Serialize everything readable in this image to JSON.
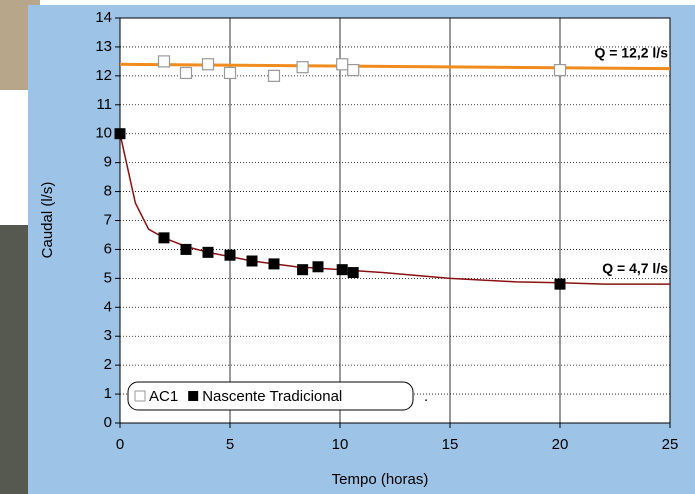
{
  "chart_data": {
    "type": "scatter",
    "x_label": "Tempo (horas)",
    "y_label": "Caudal (l/s)",
    "xlim": [
      0,
      25
    ],
    "ylim": [
      0,
      14
    ],
    "xticks": [
      0,
      5,
      10,
      15,
      20,
      25
    ],
    "yticks": [
      0,
      1,
      2,
      3,
      4,
      5,
      6,
      7,
      8,
      9,
      10,
      11,
      12,
      13,
      14
    ],
    "grid": true,
    "series": [
      {
        "name": "AC1",
        "color": "#999999",
        "marker": "open-square",
        "x": [
          2,
          3,
          4,
          5,
          7,
          8.3,
          10.1,
          10.6,
          20
        ],
        "values": [
          12.5,
          12.1,
          12.4,
          12.1,
          12.0,
          12.3,
          12.4,
          12.2,
          12.2
        ]
      },
      {
        "name": "Nascente Tradicional",
        "color": "#000000",
        "marker": "filled-square",
        "x": [
          0,
          2,
          3,
          4,
          5,
          6,
          7,
          8.3,
          9,
          10.1,
          10.6,
          20
        ],
        "values": [
          10,
          6.4,
          6.0,
          5.9,
          5.8,
          5.6,
          5.5,
          5.3,
          5.4,
          5.3,
          5.2,
          4.8
        ]
      }
    ],
    "trend_lines": [
      {
        "color": "#f08c1e",
        "x": [
          0,
          25
        ],
        "values": [
          12.4,
          12.25
        ],
        "label": "Q = 12,2 l/s"
      },
      {
        "color": "#8b1010",
        "x": [
          0,
          0.7,
          1.3,
          2,
          3,
          4,
          5,
          6,
          7,
          8,
          10,
          12,
          15,
          18,
          20,
          22,
          25
        ],
        "values": [
          10,
          7.6,
          6.7,
          6.4,
          6.1,
          5.9,
          5.75,
          5.6,
          5.5,
          5.4,
          5.3,
          5.2,
          5.0,
          4.88,
          4.85,
          4.8,
          4.8
        ],
        "label": "Q = 4,7 l/s"
      }
    ],
    "legend_suffix": "."
  }
}
